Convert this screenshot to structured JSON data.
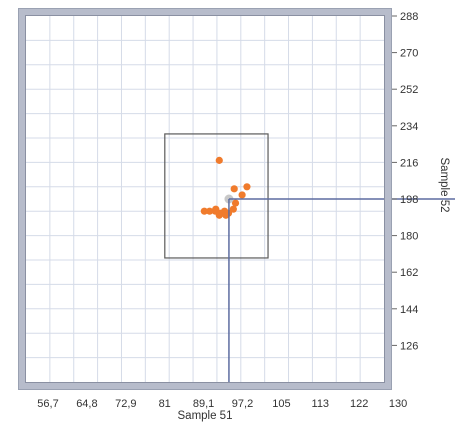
{
  "chart_data": {
    "type": "scatter",
    "title": "",
    "xlabel": "Sample 51",
    "ylabel": "Sample 52",
    "x_ticks": [
      "56,7",
      "64,8",
      "72,9",
      "81",
      "89,1",
      "97,2",
      "105",
      "113",
      "122",
      "130"
    ],
    "y_ticks": [
      "288",
      "270",
      "252",
      "234",
      "216",
      "198",
      "180",
      "162",
      "144",
      "126"
    ],
    "xlim": [
      48.5,
      130
    ],
    "ylim": [
      108,
      288
    ],
    "grid": true,
    "legend": "none",
    "series": [
      {
        "marker_color": "#f07b2c",
        "points": [
          {
            "x": 92.5,
            "y": 217
          },
          {
            "x": 95.9,
            "y": 203
          },
          {
            "x": 98.8,
            "y": 204
          },
          {
            "x": 97.7,
            "y": 200
          },
          {
            "x": 94.7,
            "y": 198
          },
          {
            "x": 96.2,
            "y": 196
          },
          {
            "x": 95.7,
            "y": 193
          },
          {
            "x": 94.6,
            "y": 191
          },
          {
            "x": 93.7,
            "y": 192
          },
          {
            "x": 92.7,
            "y": 191
          },
          {
            "x": 91.7,
            "y": 193
          },
          {
            "x": 91.6,
            "y": 192
          },
          {
            "x": 90.3,
            "y": 192
          },
          {
            "x": 89.1,
            "y": 192
          },
          {
            "x": 92.5,
            "y": 190
          },
          {
            "x": 94.0,
            "y": 190
          }
        ]
      }
    ],
    "highlight_point": {
      "x": 94.7,
      "y": 198,
      "color": "#c8c8c8"
    },
    "crosshair": {
      "x": 94.7,
      "y": 198
    },
    "selection_box": {
      "x_range": [
        80.1,
        103.6
      ],
      "y_range": [
        169,
        230
      ]
    },
    "colors": {
      "frame": "#9aa1b2",
      "grid": "#d5dbe8",
      "box": "#5a5a5a",
      "crosshair": "#5d6ca0"
    }
  }
}
